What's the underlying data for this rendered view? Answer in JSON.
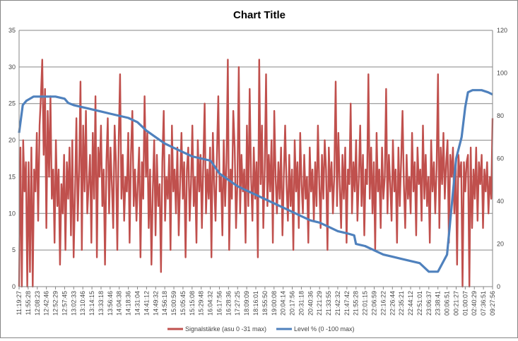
{
  "chart_data": {
    "type": "line",
    "title": "Chart Title",
    "xlabel": "",
    "ylabel": "",
    "y_left_lim": [
      0,
      35
    ],
    "y_left_ticks": [
      0,
      5,
      10,
      15,
      20,
      25,
      30,
      35
    ],
    "y_right_lim": [
      0,
      120
    ],
    "y_right_ticks": [
      0,
      20,
      40,
      60,
      80,
      100,
      120
    ],
    "grid": "horizontal",
    "legend_position": "bottom",
    "x_tick_labels": [
      "11:19:27",
      "11:55:28",
      "12:08:23",
      "12:42:46",
      "12:52:29",
      "12:57:45",
      "13:02:33",
      "13:10:46",
      "13:14:15",
      "13:33:18",
      "13:56:46",
      "14:04:38",
      "14:18:36",
      "14:31:04",
      "14:41:12",
      "14:49:32",
      "14:56:18",
      "15:00:59",
      "15:05:45",
      "15:15:08",
      "15:29:48",
      "16:04:32",
      "16:17:56",
      "16:28:36",
      "17:27:25",
      "18:09:09",
      "18:16:01",
      "18:55:50",
      "19:00:08",
      "20:04:14",
      "20:17:56",
      "20:31:18",
      "20:40:36",
      "21:21:29",
      "21:33:55",
      "21:42:32",
      "21:47:42",
      "21:55:28",
      "22:01:15",
      "22:06:59",
      "22:16:22",
      "22:26:44",
      "22:35:21",
      "22:44:12",
      "22:51:01",
      "23:06:37",
      "23:38:41",
      "00:06:51",
      "00:21:27",
      "01:00:07",
      "02:40:29",
      "07:36:51",
      "09:27:56"
    ],
    "series": [
      {
        "name": "Signalstärke (asu 0 -31 max)",
        "axis": "left",
        "color": "#c0504d",
        "x_range": [
          0,
          52
        ],
        "values": [
          0,
          19,
          0,
          20,
          13,
          17,
          0,
          17,
          2,
          19,
          0,
          16,
          13,
          21,
          9,
          22,
          26,
          31,
          18,
          27,
          8,
          24,
          15,
          26,
          12,
          16,
          6,
          20,
          11,
          16,
          3,
          14,
          10,
          18,
          5,
          17,
          12,
          19,
          7,
          20,
          4,
          13,
          23,
          9,
          16,
          28,
          5,
          22,
          13,
          24,
          10,
          14,
          18,
          6,
          21,
          12,
          26,
          4,
          19,
          15,
          22,
          11,
          16,
          3,
          17,
          23,
          10,
          19,
          14,
          8,
          22,
          17,
          5,
          20,
          29,
          12,
          18,
          9,
          15,
          13,
          21,
          6,
          18,
          24,
          11,
          16,
          9,
          14,
          19,
          4,
          17,
          12,
          26,
          15,
          21,
          8,
          16,
          3,
          13,
          20,
          7,
          18,
          11,
          14,
          2,
          17,
          24,
          9,
          15,
          12,
          18,
          5,
          22,
          13,
          16,
          10,
          19,
          7,
          14,
          21,
          12,
          17,
          4,
          16,
          19,
          9,
          14,
          22,
          11,
          15,
          6,
          20,
          13,
          18,
          8,
          17,
          25,
          10,
          16,
          12,
          19,
          4,
          21,
          14,
          9,
          18,
          26,
          13,
          15,
          7,
          20,
          11,
          17,
          31,
          5,
          16,
          12,
          24,
          19,
          8,
          14,
          30,
          10,
          18,
          13,
          16,
          6,
          22,
          11,
          27,
          15,
          9,
          19,
          12,
          17,
          4,
          31,
          14,
          22,
          8,
          16,
          29,
          11,
          18,
          13,
          20,
          6,
          24,
          15,
          10,
          17,
          12,
          19,
          7,
          15,
          22,
          14,
          9,
          18,
          11,
          16,
          5,
          20,
          13,
          17,
          8,
          21,
          14,
          10,
          18,
          12,
          15,
          6,
          19,
          13,
          16,
          9,
          17,
          11,
          22,
          14,
          8,
          18,
          12,
          20,
          16,
          5,
          19,
          13,
          17,
          10,
          15,
          28,
          11,
          21,
          14,
          8,
          18,
          12,
          19,
          6,
          16,
          14,
          25,
          10,
          17,
          13,
          20,
          9,
          15,
          22,
          11,
          18,
          7,
          16,
          14,
          29,
          12,
          19,
          10,
          17,
          5,
          21,
          13,
          16,
          8,
          19,
          12,
          15,
          27,
          10,
          18,
          14,
          9,
          20,
          13,
          16,
          6,
          19,
          11,
          17,
          24,
          14,
          8,
          18,
          12,
          15,
          10,
          21,
          13,
          17,
          7,
          19,
          14,
          16,
          9,
          22,
          12,
          18,
          11,
          15,
          6,
          20,
          13,
          17,
          10,
          16,
          29,
          8,
          19,
          14,
          21,
          12,
          17,
          20,
          6,
          18,
          15,
          19,
          10,
          17,
          3,
          18,
          15,
          17,
          0,
          17,
          13,
          17,
          18,
          0,
          19,
          8,
          16,
          12,
          19,
          9,
          17,
          14,
          18,
          8,
          16,
          13,
          17,
          10,
          15,
          12,
          23
        ]
      },
      {
        "name": "Level % (0 -100 max)",
        "axis": "right",
        "color": "#4f81bd",
        "x": [
          0,
          0.4,
          0.8,
          1.2,
          1.6,
          2.2,
          3.0,
          4.0,
          5.0,
          5.4,
          6,
          7,
          8,
          9,
          10,
          11,
          12,
          13,
          14,
          15,
          16,
          17,
          18,
          19,
          20,
          21,
          21.2,
          22,
          23,
          24,
          25,
          26,
          27,
          28,
          29,
          30,
          31,
          32,
          33,
          34,
          35,
          36,
          36.8,
          37,
          38,
          39,
          40,
          41,
          42,
          43,
          44,
          45,
          46,
          47,
          48,
          48.6,
          49,
          49.3,
          49.8,
          50.3,
          50.8,
          51.5,
          52
        ],
        "values": [
          72,
          85,
          87,
          88,
          89,
          89,
          89,
          89,
          88,
          86,
          85,
          84,
          83,
          82,
          81,
          80,
          79,
          77,
          73,
          70,
          67,
          65,
          63,
          61,
          60,
          59,
          58,
          53,
          50,
          47,
          45,
          43,
          41,
          39,
          37,
          35,
          33,
          31,
          30,
          28,
          26,
          25,
          24,
          20,
          19,
          17,
          15,
          14,
          13,
          12,
          11,
          7,
          7,
          15,
          60,
          70,
          84,
          91,
          92,
          92,
          92,
          91,
          90
        ]
      }
    ]
  }
}
